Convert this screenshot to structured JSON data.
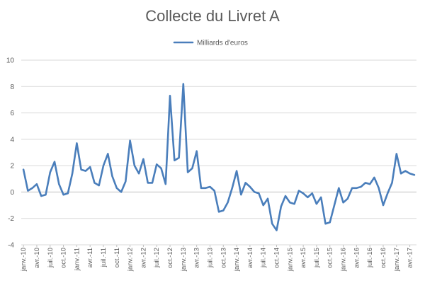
{
  "chart_data": {
    "type": "line",
    "title": "Collecte du Livret A",
    "xlabel": "",
    "ylabel": "",
    "ylim": [
      -4,
      10
    ],
    "ytick_step": 2,
    "grid": true,
    "legend_position": "top-center",
    "series": [
      {
        "name": "Milliards d'euros",
        "color": "#4a7ebb",
        "values": [
          1.7,
          0.1,
          0.3,
          0.6,
          -0.3,
          -0.2,
          1.5,
          2.3,
          0.6,
          -0.2,
          -0.1,
          1.4,
          3.7,
          1.7,
          1.6,
          1.9,
          0.7,
          0.5,
          2.0,
          2.9,
          1.2,
          0.3,
          0.0,
          0.8,
          3.9,
          2.0,
          1.4,
          2.5,
          0.7,
          0.7,
          2.1,
          1.8,
          0.6,
          7.3,
          2.4,
          2.6,
          8.2,
          1.5,
          1.8,
          3.1,
          0.3,
          0.3,
          0.4,
          0.1,
          -1.5,
          -1.4,
          -0.8,
          0.3,
          1.6,
          -0.2,
          0.7,
          0.4,
          0.0,
          -0.1,
          -1.0,
          -0.5,
          -2.4,
          -2.9,
          -1.1,
          -0.3,
          -0.8,
          -0.9,
          0.1,
          -0.1,
          -0.4,
          -0.1,
          -0.9,
          -0.4,
          -2.4,
          -2.3,
          -1.0,
          0.3,
          -0.8,
          -0.5,
          0.3,
          0.3,
          0.4,
          0.7,
          0.6,
          1.1,
          0.3,
          -1.0,
          -0.1,
          0.7,
          2.9,
          1.4,
          1.6,
          1.4,
          1.3
        ]
      }
    ],
    "tick_labels": [
      "janv.-10",
      "avr.-10",
      "juil.-10",
      "oct.-10",
      "janv.-11",
      "avr.-11",
      "juil.-11",
      "oct.-11",
      "janv.-12",
      "avr.-12",
      "juil.-12",
      "oct.-12",
      "janv.-13",
      "avr.-13",
      "juil.-13",
      "oct.-13",
      "janv.-14",
      "avr.-14",
      "juil.-14",
      "oct.-14",
      "janv.-15",
      "avr.-15",
      "juil.-15",
      "oct.-15",
      "janv.-16",
      "avr.-16",
      "juil.-16",
      "oct.-16",
      "janv.-17",
      "avr.-17"
    ],
    "tick_label_every_n_months": 3
  }
}
